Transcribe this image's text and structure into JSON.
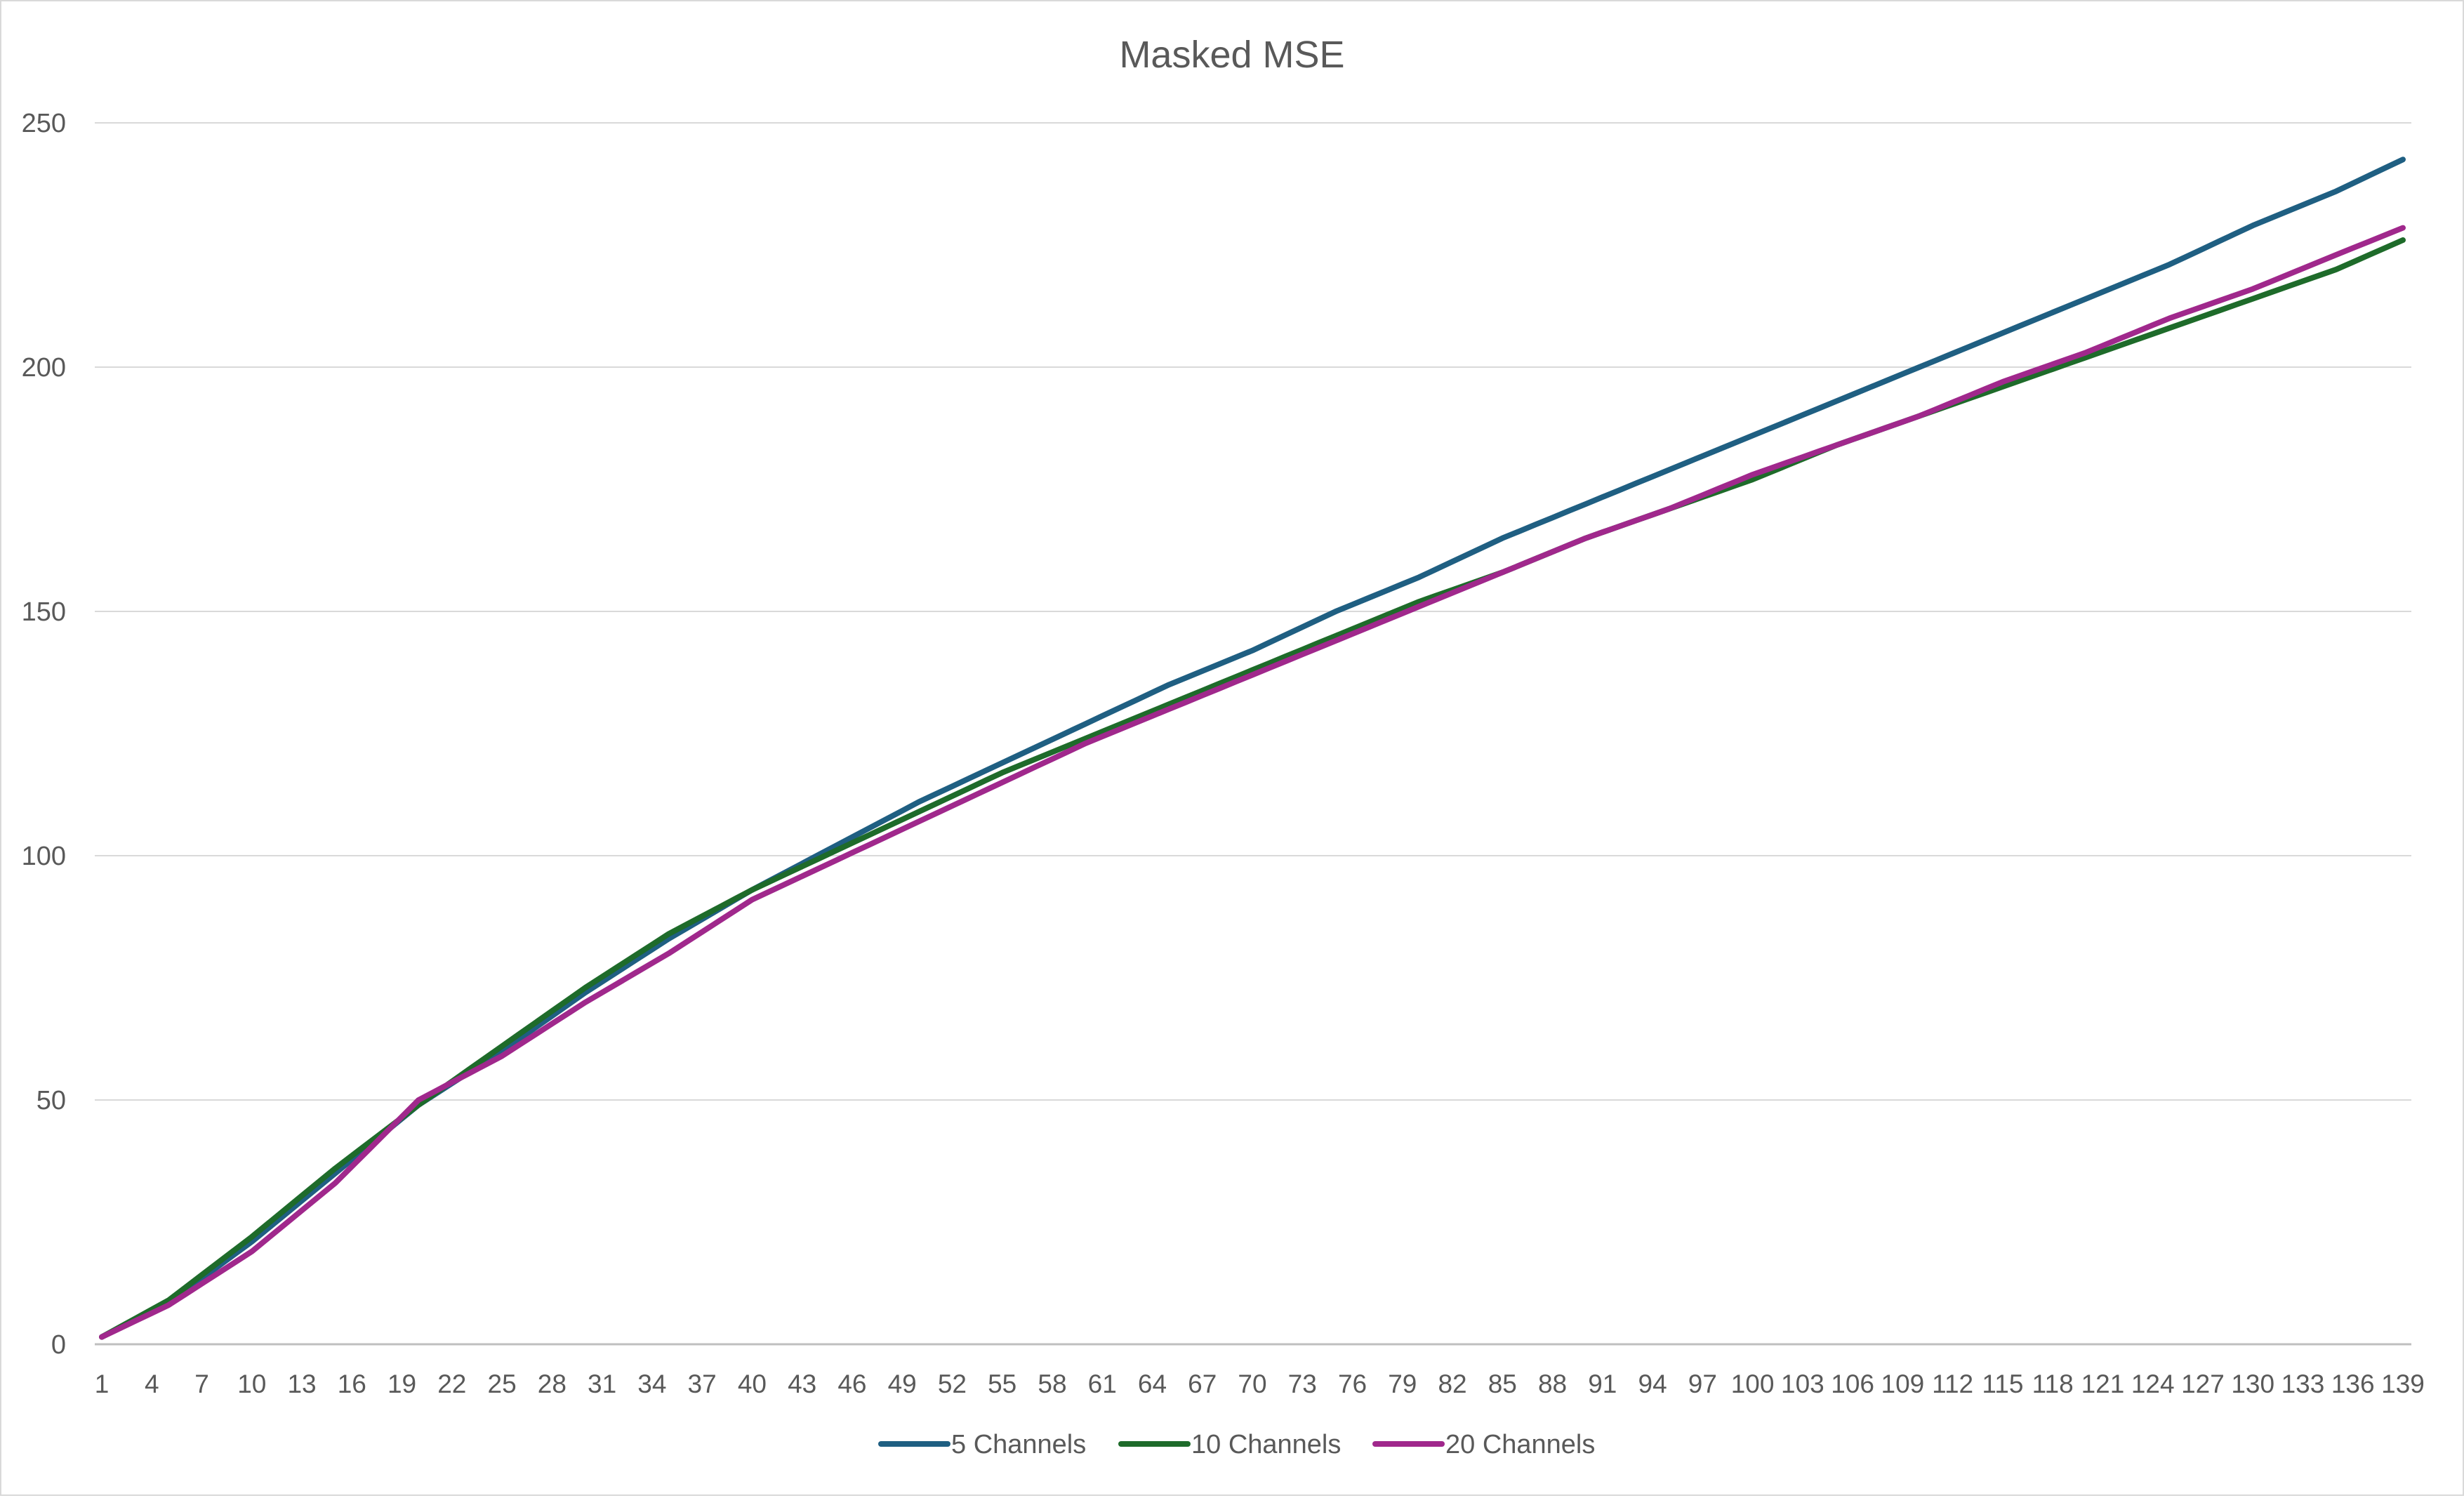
{
  "chart_data": {
    "type": "line",
    "title": "Masked MSE",
    "xlabel": "",
    "ylabel": "",
    "x_start": 1,
    "x_end": 139,
    "x_tick_labels": [
      "1",
      "4",
      "7",
      "10",
      "13",
      "16",
      "19",
      "22",
      "25",
      "28",
      "31",
      "34",
      "37",
      "40",
      "43",
      "46",
      "49",
      "52",
      "55",
      "58",
      "61",
      "64",
      "67",
      "70",
      "73",
      "76",
      "79",
      "82",
      "85",
      "88",
      "91",
      "94",
      "97",
      "100",
      "103",
      "106",
      "109",
      "112",
      "115",
      "118",
      "121",
      "124",
      "127",
      "130",
      "133",
      "136",
      "139"
    ],
    "y_ticks": [
      0,
      50,
      100,
      150,
      200,
      250
    ],
    "y_tick_labels": [
      "0",
      "50",
      "100",
      "150",
      "200",
      "250"
    ],
    "ylim": [
      0,
      250
    ],
    "grid": "horizontal",
    "legend_position": "bottom",
    "series": [
      {
        "name": "5 Channels",
        "color": "#1f5f82",
        "points": [
          [
            1,
            1.5
          ],
          [
            5,
            8.5
          ],
          [
            10,
            21
          ],
          [
            15,
            35
          ],
          [
            20,
            49
          ],
          [
            25,
            60
          ],
          [
            30,
            72
          ],
          [
            35,
            83
          ],
          [
            40,
            93
          ],
          [
            45,
            102
          ],
          [
            50,
            111
          ],
          [
            55,
            119
          ],
          [
            60,
            127
          ],
          [
            65,
            135
          ],
          [
            70,
            142
          ],
          [
            75,
            150
          ],
          [
            80,
            157
          ],
          [
            85,
            165
          ],
          [
            90,
            172
          ],
          [
            95,
            179
          ],
          [
            100,
            186
          ],
          [
            105,
            193
          ],
          [
            110,
            200
          ],
          [
            115,
            207
          ],
          [
            120,
            214
          ],
          [
            125,
            221
          ],
          [
            130,
            229
          ],
          [
            135,
            236
          ],
          [
            139,
            242.5
          ]
        ]
      },
      {
        "name": "10 Channels",
        "color": "#1e6b2a",
        "points": [
          [
            1,
            1.5
          ],
          [
            5,
            9
          ],
          [
            10,
            22
          ],
          [
            15,
            36
          ],
          [
            20,
            49
          ],
          [
            25,
            61
          ],
          [
            30,
            73
          ],
          [
            35,
            84
          ],
          [
            40,
            93
          ],
          [
            45,
            101
          ],
          [
            50,
            109
          ],
          [
            55,
            117
          ],
          [
            60,
            124
          ],
          [
            65,
            131
          ],
          [
            70,
            138
          ],
          [
            75,
            145
          ],
          [
            80,
            152
          ],
          [
            85,
            158
          ],
          [
            90,
            165
          ],
          [
            95,
            171
          ],
          [
            100,
            177
          ],
          [
            105,
            184
          ],
          [
            110,
            190
          ],
          [
            115,
            196
          ],
          [
            120,
            202
          ],
          [
            125,
            208
          ],
          [
            130,
            214
          ],
          [
            135,
            220
          ],
          [
            139,
            226
          ]
        ]
      },
      {
        "name": "20 Channels",
        "color": "#a0288c",
        "points": [
          [
            1,
            1.5
          ],
          [
            5,
            8
          ],
          [
            10,
            19
          ],
          [
            15,
            33
          ],
          [
            20,
            50
          ],
          [
            25,
            59
          ],
          [
            30,
            70
          ],
          [
            35,
            80
          ],
          [
            40,
            91
          ],
          [
            45,
            99
          ],
          [
            50,
            107
          ],
          [
            55,
            115
          ],
          [
            60,
            123
          ],
          [
            65,
            130
          ],
          [
            70,
            137
          ],
          [
            75,
            144
          ],
          [
            80,
            151
          ],
          [
            85,
            158
          ],
          [
            90,
            165
          ],
          [
            95,
            171
          ],
          [
            100,
            178
          ],
          [
            105,
            184
          ],
          [
            110,
            190
          ],
          [
            115,
            197
          ],
          [
            120,
            203
          ],
          [
            125,
            210
          ],
          [
            130,
            216
          ],
          [
            135,
            223
          ],
          [
            139,
            228.5
          ]
        ]
      }
    ]
  }
}
